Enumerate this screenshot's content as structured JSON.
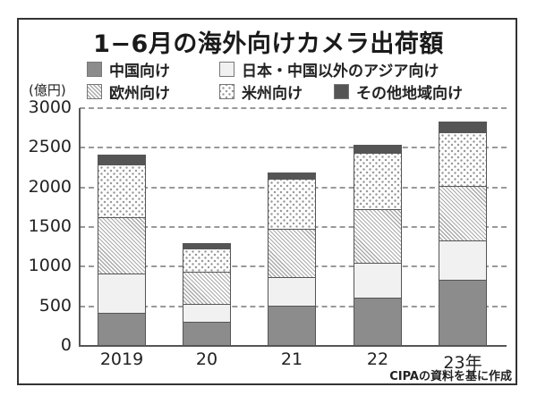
{
  "title": "1−6月の海外向けカメラ出荷額",
  "unit_label": "(億円)",
  "source": "CIPAの資料を基に作成",
  "legend": [
    {
      "key": "china",
      "label": "中国向け",
      "color": "#8c8c8c",
      "pattern": "solid"
    },
    {
      "key": "asia",
      "label": "日本・中国以外のアジア向け",
      "color": "#f1f1f1",
      "pattern": "solid"
    },
    {
      "key": "europe",
      "label": "欧州向け",
      "color": "#aaaaaa",
      "pattern": "diagonal-hatch"
    },
    {
      "key": "americas",
      "label": "米州向け",
      "color": "#9a9a9a",
      "pattern": "dots"
    },
    {
      "key": "other",
      "label": "その他地域向け",
      "color": "#555555",
      "pattern": "solid"
    }
  ],
  "y_ticks": [
    "3000",
    "2500",
    "2000",
    "1500",
    "1000",
    "500",
    "0"
  ],
  "x_labels": [
    "2019",
    "20",
    "21",
    "22",
    "23年"
  ],
  "chart_data": {
    "type": "bar",
    "stacked": true,
    "title": "1−6月の海外向けカメラ出荷額",
    "xlabel": "",
    "ylabel": "(億円)",
    "ylim": [
      0,
      3000
    ],
    "yticks": [
      0,
      500,
      1000,
      1500,
      2000,
      2500,
      3000
    ],
    "grid": "horizontal dashed",
    "legend_position": "top",
    "categories": [
      "2019",
      "20",
      "21",
      "22",
      "23年"
    ],
    "series": [
      {
        "name": "中国向け",
        "values": [
          420,
          305,
          510,
          620,
          835
        ]
      },
      {
        "name": "日本・中国以外のアジア向け",
        "values": [
          495,
          225,
          360,
          440,
          505
        ]
      },
      {
        "name": "欧州向け",
        "values": [
          710,
          415,
          610,
          675,
          690
        ]
      },
      {
        "name": "米州向け",
        "values": [
          675,
          295,
          630,
          705,
          675
        ]
      },
      {
        "name": "その他地域向け",
        "values": [
          110,
          55,
          80,
          100,
          125
        ]
      }
    ],
    "totals": [
      2410,
      1295,
      2190,
      2540,
      2830
    ],
    "source_note": "CIPAの資料を基に作成"
  }
}
